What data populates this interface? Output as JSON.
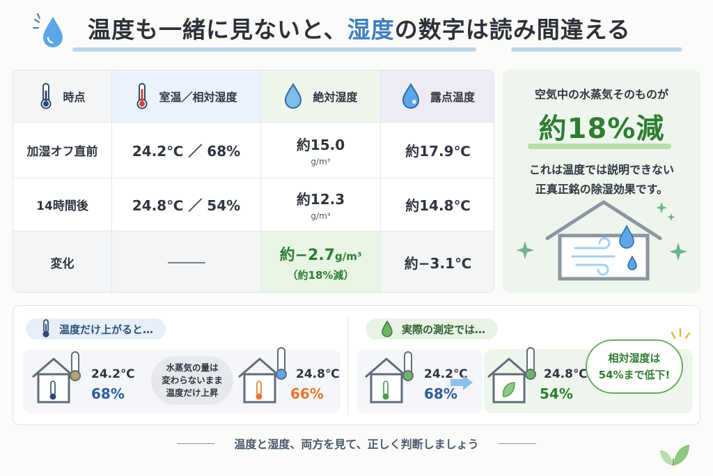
{
  "header": {
    "title_part1": "温度も一緒に見ないと、",
    "title_highlight": "湿度",
    "title_part2": "の数字は読み間違える"
  },
  "table": {
    "headers": [
      "時点",
      "室温／相対湿度",
      "絶対湿度",
      "露点温度"
    ],
    "rows": [
      {
        "label": "加湿オフ直前",
        "temp_rh": "24.2℃ ／ 68%",
        "abs_value": "約15.0",
        "abs_unit": "g/m³",
        "dew": "約17.9℃"
      },
      {
        "label": "14時間後",
        "temp_rh": "24.8℃ ／ 54%",
        "abs_value": "約12.3",
        "abs_unit": "g/m³",
        "dew": "約14.8℃"
      }
    ],
    "change": {
      "label": "変化",
      "abs_value": "約−2.7",
      "abs_unit": "g/m³",
      "abs_note": "（約18%減）",
      "dew": "約−3.1℃"
    }
  },
  "side_panel": {
    "lead": "空気中の水蒸気そのものが",
    "headline": "約18%減",
    "line1": "これは温度では説明できない",
    "line2": "正真正銘の除湿効果です。"
  },
  "bottom": {
    "left": {
      "pill": "温度だけ上がると…",
      "before_temp": "24.2℃",
      "before_rh": "68%",
      "bubble_line1": "水蒸気の量は",
      "bubble_line2": "変わらないまま",
      "bubble_line3": "温度だけ上昇",
      "after_temp": "24.8℃",
      "after_rh": "66%"
    },
    "right": {
      "pill": "実際の測定では…",
      "before_temp": "24.2℃",
      "before_rh": "68%",
      "after_temp": "24.8℃",
      "after_rh": "54%",
      "cloud_line1": "相対湿度は",
      "cloud_line2": "54%まで低下!"
    }
  },
  "footer": "温度と湿度、両方を見て、正しく判断しましょう",
  "colors": {
    "accent_blue": "#3f7fbf",
    "accent_green": "#2e7d32",
    "orange": "#e8772e"
  },
  "icons": [
    "water-drop-icon",
    "thermometer-icon",
    "house-icon",
    "wind-icon",
    "sparkle-icon",
    "arrow-right-icon",
    "leaf-icon"
  ]
}
